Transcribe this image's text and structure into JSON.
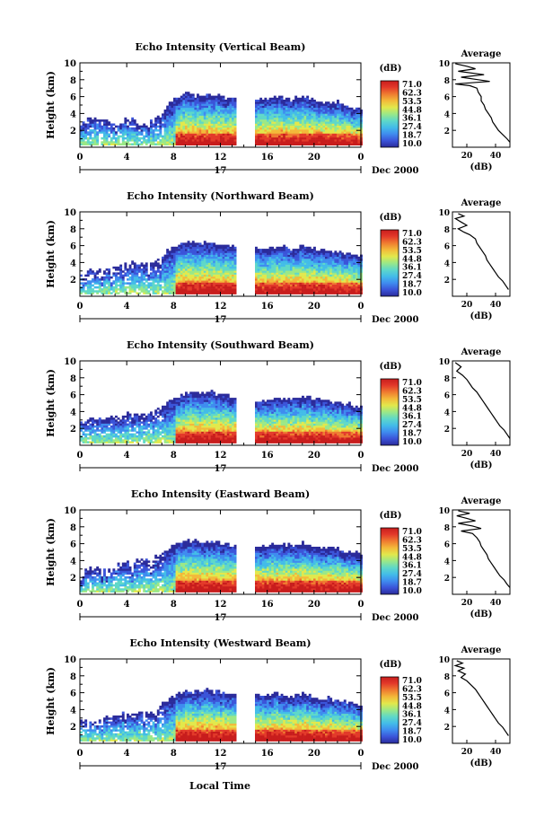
{
  "page": {
    "background": "#ffffff"
  },
  "colorbar": {
    "unit": "(dB)",
    "labels": [
      "71.0",
      "62.3",
      "53.5",
      "44.8",
      "36.1",
      "27.4",
      "18.7",
      "10.0"
    ],
    "colors": [
      "#2b2b9b",
      "#3b54d9",
      "#3f8cef",
      "#43bce8",
      "#5fd8c8",
      "#9be887",
      "#e2e84c",
      "#f3b93a",
      "#ef7b30",
      "#e33a2a",
      "#c81d1d"
    ]
  },
  "x_axis_common": {
    "tick_labels": [
      "0",
      "4",
      "8",
      "12",
      "16",
      "20",
      "0"
    ],
    "date_label": "17",
    "month_year": "Dec 2000",
    "xlabel": "Local Time"
  },
  "chart_data": [
    {
      "type": "heatmap",
      "title": "Echo Intensity (Vertical Beam)",
      "ylabel": "Height (km)",
      "xlim": [
        0,
        24
      ],
      "ylim": [
        0,
        10
      ],
      "y_tick_labels": [
        "2",
        "4",
        "6",
        "8",
        "10"
      ],
      "colorbar_range": [
        10.0,
        71.0
      ],
      "data_gap_hours": [
        13.2,
        14.8
      ],
      "top_height_km": [
        [
          0,
          2.9
        ],
        [
          1,
          3.2
        ],
        [
          2,
          3.2
        ],
        [
          3,
          2.9
        ],
        [
          4,
          3.4
        ],
        [
          5,
          2.6
        ],
        [
          6,
          3.1
        ],
        [
          7,
          4.2
        ],
        [
          8,
          5.7
        ],
        [
          9,
          6.2
        ],
        [
          10,
          6.0
        ],
        [
          11,
          6.1
        ],
        [
          12,
          5.9
        ],
        [
          13,
          5.6
        ],
        [
          15,
          5.5
        ],
        [
          16,
          5.6
        ],
        [
          17,
          5.8
        ],
        [
          18,
          5.6
        ],
        [
          19,
          6.1
        ],
        [
          20,
          5.4
        ],
        [
          21,
          5.2
        ],
        [
          22,
          5.3
        ],
        [
          23,
          4.6
        ],
        [
          24,
          4.4
        ]
      ],
      "average_profile": {
        "title": "Average",
        "xlabel": "(dB)",
        "x_tick_labels": [
          "20",
          "40"
        ],
        "y_tick_labels": [
          "2",
          "4",
          "6",
          "8",
          "10"
        ],
        "xlim": [
          10,
          50
        ],
        "ylim": [
          0,
          10
        ],
        "points": [
          [
            12,
            9.9
          ],
          [
            20,
            9.6
          ],
          [
            26,
            9.3
          ],
          [
            14,
            9.0
          ],
          [
            32,
            8.6
          ],
          [
            16,
            8.3
          ],
          [
            28,
            8.0
          ],
          [
            36,
            7.8
          ],
          [
            12,
            7.5
          ],
          [
            22,
            7.3
          ],
          [
            27,
            7.0
          ],
          [
            28,
            6.5
          ],
          [
            30,
            6.0
          ],
          [
            30,
            5.5
          ],
          [
            32,
            5.0
          ],
          [
            33,
            4.5
          ],
          [
            35,
            4.0
          ],
          [
            37,
            3.5
          ],
          [
            38,
            3.0
          ],
          [
            40,
            2.5
          ],
          [
            42,
            2.0
          ],
          [
            45,
            1.5
          ],
          [
            48,
            1.0
          ],
          [
            50,
            0.6
          ]
        ]
      }
    },
    {
      "type": "heatmap",
      "title": "Echo Intensity (Northward Beam)",
      "ylabel": "Height (km)",
      "xlim": [
        0,
        24
      ],
      "ylim": [
        0,
        10
      ],
      "y_tick_labels": [
        "2",
        "4",
        "6",
        "8",
        "10"
      ],
      "colorbar_range": [
        10.0,
        71.0
      ],
      "data_gap_hours": [
        13.2,
        14.8
      ],
      "top_height_km": [
        [
          0,
          2.6
        ],
        [
          1,
          2.9
        ],
        [
          2,
          3.1
        ],
        [
          3,
          3.4
        ],
        [
          4,
          3.9
        ],
        [
          5,
          3.7
        ],
        [
          6,
          3.9
        ],
        [
          7,
          4.8
        ],
        [
          8,
          5.8
        ],
        [
          9,
          6.2
        ],
        [
          10,
          6.2
        ],
        [
          11,
          6.1
        ],
        [
          12,
          6.0
        ],
        [
          13,
          5.7
        ],
        [
          15,
          5.6
        ],
        [
          16,
          5.6
        ],
        [
          17,
          5.8
        ],
        [
          18,
          5.5
        ],
        [
          19,
          5.9
        ],
        [
          20,
          5.4
        ],
        [
          21,
          5.3
        ],
        [
          22,
          5.2
        ],
        [
          23,
          4.8
        ],
        [
          24,
          4.6
        ]
      ],
      "average_profile": {
        "title": "Average",
        "xlabel": "(dB)",
        "x_tick_labels": [
          "20",
          "40"
        ],
        "y_tick_labels": [
          "2",
          "4",
          "6",
          "8",
          "10"
        ],
        "xlim": [
          10,
          50
        ],
        "ylim": [
          0,
          10
        ],
        "points": [
          [
            14,
            9.8
          ],
          [
            18,
            9.5
          ],
          [
            12,
            9.2
          ],
          [
            16,
            8.8
          ],
          [
            20,
            8.4
          ],
          [
            14,
            8.0
          ],
          [
            18,
            7.6
          ],
          [
            22,
            7.3
          ],
          [
            26,
            6.8
          ],
          [
            27,
            6.3
          ],
          [
            29,
            5.8
          ],
          [
            31,
            5.3
          ],
          [
            33,
            4.8
          ],
          [
            34,
            4.3
          ],
          [
            36,
            3.8
          ],
          [
            38,
            3.3
          ],
          [
            40,
            2.8
          ],
          [
            42,
            2.3
          ],
          [
            45,
            1.8
          ],
          [
            47,
            1.3
          ],
          [
            49,
            0.8
          ]
        ]
      }
    },
    {
      "type": "heatmap",
      "title": "Echo Intensity (Southward Beam)",
      "ylabel": "Height (km)",
      "xlim": [
        0,
        24
      ],
      "ylim": [
        0,
        10
      ],
      "y_tick_labels": [
        "2",
        "4",
        "6",
        "8",
        "10"
      ],
      "colorbar_range": [
        10.0,
        71.0
      ],
      "data_gap_hours": [
        13.2,
        14.8
      ],
      "top_height_km": [
        [
          0,
          2.8
        ],
        [
          1,
          3.0
        ],
        [
          2,
          3.2
        ],
        [
          3,
          3.3
        ],
        [
          4,
          3.7
        ],
        [
          5,
          3.6
        ],
        [
          6,
          3.8
        ],
        [
          7,
          4.6
        ],
        [
          8,
          5.6
        ],
        [
          9,
          6.1
        ],
        [
          10,
          6.1
        ],
        [
          11,
          6.2
        ],
        [
          12,
          5.9
        ],
        [
          13,
          5.6
        ],
        [
          15,
          5.3
        ],
        [
          16,
          5.2
        ],
        [
          17,
          5.6
        ],
        [
          18,
          5.4
        ],
        [
          19,
          5.7
        ],
        [
          20,
          5.4
        ],
        [
          21,
          5.2
        ],
        [
          22,
          5.1
        ],
        [
          23,
          4.7
        ],
        [
          24,
          4.5
        ]
      ],
      "average_profile": {
        "title": "Average",
        "xlabel": "(dB)",
        "x_tick_labels": [
          "20",
          "40"
        ],
        "y_tick_labels": [
          "2",
          "4",
          "6",
          "8",
          "10"
        ],
        "xlim": [
          10,
          50
        ],
        "ylim": [
          0,
          10
        ],
        "points": [
          [
            12,
            9.8
          ],
          [
            16,
            9.3
          ],
          [
            13,
            8.8
          ],
          [
            17,
            8.3
          ],
          [
            20,
            7.8
          ],
          [
            22,
            7.3
          ],
          [
            24,
            6.8
          ],
          [
            27,
            6.3
          ],
          [
            29,
            5.8
          ],
          [
            31,
            5.3
          ],
          [
            33,
            4.8
          ],
          [
            35,
            4.3
          ],
          [
            37,
            3.8
          ],
          [
            39,
            3.3
          ],
          [
            41,
            2.8
          ],
          [
            43,
            2.3
          ],
          [
            46,
            1.8
          ],
          [
            48,
            1.3
          ],
          [
            50,
            0.8
          ]
        ]
      }
    },
    {
      "type": "heatmap",
      "title": "Echo Intensity (Eastward Beam)",
      "ylabel": "Height (km)",
      "xlim": [
        0,
        24
      ],
      "ylim": [
        0,
        10
      ],
      "y_tick_labels": [
        "2",
        "4",
        "6",
        "8",
        "10"
      ],
      "colorbar_range": [
        10.0,
        71.0
      ],
      "data_gap_hours": [
        13.2,
        14.8
      ],
      "top_height_km": [
        [
          0,
          2.7
        ],
        [
          1,
          2.9
        ],
        [
          2,
          3.1
        ],
        [
          3,
          3.3
        ],
        [
          4,
          3.8
        ],
        [
          5,
          3.8
        ],
        [
          6,
          4.0
        ],
        [
          7,
          4.9
        ],
        [
          8,
          5.8
        ],
        [
          9,
          6.2
        ],
        [
          10,
          6.2
        ],
        [
          11,
          6.1
        ],
        [
          12,
          6.0
        ],
        [
          13,
          5.6
        ],
        [
          15,
          5.6
        ],
        [
          16,
          5.7
        ],
        [
          17,
          5.9
        ],
        [
          18,
          5.6
        ],
        [
          19,
          6.0
        ],
        [
          20,
          5.5
        ],
        [
          21,
          5.3
        ],
        [
          22,
          5.3
        ],
        [
          23,
          4.9
        ],
        [
          24,
          4.6
        ]
      ],
      "average_profile": {
        "title": "Average",
        "xlabel": "(dB)",
        "x_tick_labels": [
          "20",
          "40"
        ],
        "y_tick_labels": [
          "2",
          "4",
          "6",
          "8",
          "10"
        ],
        "xlim": [
          10,
          50
        ],
        "ylim": [
          0,
          10
        ],
        "points": [
          [
            14,
            9.9
          ],
          [
            22,
            9.6
          ],
          [
            13,
            9.3
          ],
          [
            20,
            9.0
          ],
          [
            26,
            8.7
          ],
          [
            14,
            8.4
          ],
          [
            24,
            8.1
          ],
          [
            30,
            7.8
          ],
          [
            16,
            7.5
          ],
          [
            24,
            7.2
          ],
          [
            27,
            6.7
          ],
          [
            29,
            6.2
          ],
          [
            30,
            5.7
          ],
          [
            32,
            5.2
          ],
          [
            34,
            4.7
          ],
          [
            35,
            4.2
          ],
          [
            37,
            3.7
          ],
          [
            39,
            3.2
          ],
          [
            41,
            2.7
          ],
          [
            43,
            2.2
          ],
          [
            46,
            1.7
          ],
          [
            48,
            1.2
          ],
          [
            50,
            0.8
          ]
        ]
      }
    },
    {
      "type": "heatmap",
      "title": "Echo Intensity (Westward Beam)",
      "ylabel": "Height (km)",
      "xlim": [
        0,
        24
      ],
      "ylim": [
        0,
        10
      ],
      "y_tick_labels": [
        "2",
        "4",
        "6",
        "8",
        "10"
      ],
      "colorbar_range": [
        10.0,
        71.0
      ],
      "data_gap_hours": [
        13.2,
        14.8
      ],
      "top_height_km": [
        [
          0,
          2.6
        ],
        [
          1,
          2.8
        ],
        [
          2,
          3.0
        ],
        [
          3,
          3.3
        ],
        [
          4,
          3.6
        ],
        [
          5,
          3.6
        ],
        [
          6,
          3.9
        ],
        [
          7,
          4.7
        ],
        [
          8,
          5.6
        ],
        [
          9,
          6.0
        ],
        [
          10,
          6.0
        ],
        [
          11,
          6.2
        ],
        [
          12,
          5.9
        ],
        [
          13,
          5.6
        ],
        [
          15,
          5.5
        ],
        [
          16,
          5.6
        ],
        [
          17,
          5.8
        ],
        [
          18,
          5.4
        ],
        [
          19,
          5.8
        ],
        [
          20,
          5.4
        ],
        [
          21,
          5.2
        ],
        [
          22,
          5.1
        ],
        [
          23,
          4.7
        ],
        [
          24,
          4.4
        ]
      ],
      "average_profile": {
        "title": "Average",
        "xlabel": "(dB)",
        "x_tick_labels": [
          "20",
          "40"
        ],
        "y_tick_labels": [
          "2",
          "4",
          "6",
          "8",
          "10"
        ],
        "xlim": [
          10,
          50
        ],
        "ylim": [
          0,
          10
        ],
        "points": [
          [
            13,
            9.8
          ],
          [
            17,
            9.5
          ],
          [
            12,
            9.2
          ],
          [
            18,
            8.9
          ],
          [
            14,
            8.6
          ],
          [
            19,
            8.2
          ],
          [
            16,
            7.8
          ],
          [
            20,
            7.4
          ],
          [
            23,
            6.9
          ],
          [
            26,
            6.4
          ],
          [
            28,
            5.9
          ],
          [
            30,
            5.4
          ],
          [
            32,
            4.9
          ],
          [
            34,
            4.4
          ],
          [
            36,
            3.9
          ],
          [
            38,
            3.4
          ],
          [
            40,
            2.9
          ],
          [
            42,
            2.4
          ],
          [
            45,
            1.9
          ],
          [
            47,
            1.4
          ],
          [
            49,
            0.9
          ]
        ]
      }
    }
  ]
}
